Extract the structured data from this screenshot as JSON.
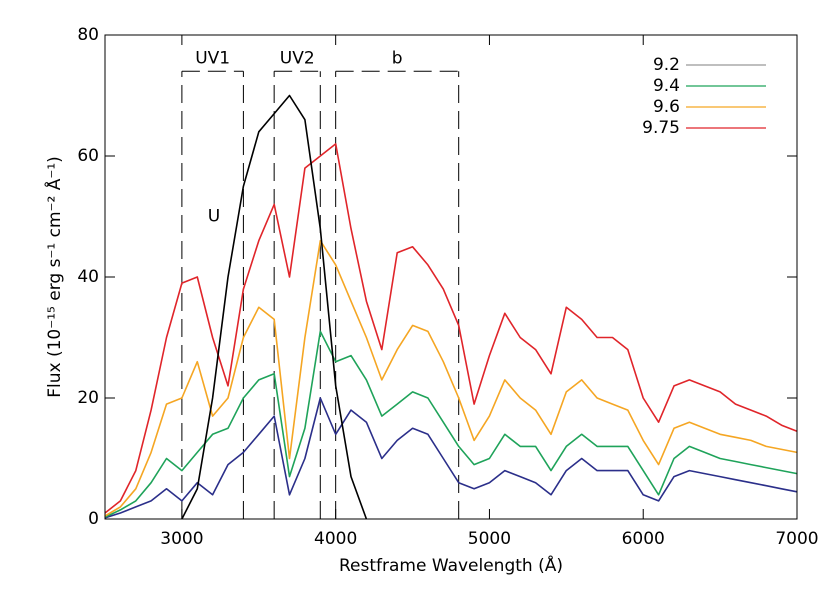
{
  "chart_data": {
    "type": "line",
    "x_label": "Restframe Wavelength (Å)",
    "y_label": "Flux (10⁻¹⁵ erg s⁻¹ cm⁻² Å⁻¹)",
    "xlim": [
      2500,
      7000
    ],
    "ylim": [
      0,
      80
    ],
    "xticks": [
      3000,
      4000,
      5000,
      6000,
      7000
    ],
    "yticks": [
      0,
      20,
      40,
      60,
      80
    ],
    "x": [
      2500,
      2600,
      2700,
      2800,
      2900,
      3000,
      3100,
      3200,
      3300,
      3400,
      3500,
      3600,
      3700,
      3800,
      3900,
      4000,
      4100,
      4200,
      4300,
      4400,
      4500,
      4600,
      4700,
      4800,
      4900,
      5000,
      5100,
      5200,
      5300,
      5400,
      5500,
      5600,
      5700,
      5800,
      5900,
      6000,
      6100,
      6200,
      6300,
      6400,
      6500,
      6600,
      6700,
      6800,
      6900,
      7000
    ],
    "series": [
      {
        "name": "9.2",
        "color": "#2b2f8a",
        "legend_color": "#999999",
        "values": [
          0.2,
          1,
          2,
          3,
          5,
          3,
          6,
          4,
          9,
          11,
          14,
          17,
          4,
          10,
          20,
          14,
          18,
          16,
          10,
          13,
          15,
          14,
          10,
          6,
          5,
          6,
          8,
          7,
          6,
          4,
          8,
          10,
          8,
          8,
          8,
          4,
          3,
          7,
          8,
          7.5,
          7,
          6.5,
          6,
          5.5,
          5,
          4.5
        ]
      },
      {
        "name": "9.4",
        "color": "#1fa35a",
        "values": [
          0.3,
          1.5,
          3,
          6,
          10,
          8,
          11,
          14,
          15,
          20,
          23,
          24,
          7,
          15,
          31,
          26,
          27,
          23,
          17,
          19,
          21,
          20,
          16,
          12,
          9,
          10,
          14,
          12,
          12,
          8,
          12,
          14,
          12,
          12,
          12,
          8,
          4,
          10,
          12,
          11,
          10,
          9.5,
          9,
          8.5,
          8,
          7.5
        ]
      },
      {
        "name": "9.6",
        "color": "#f5a623",
        "values": [
          0.5,
          2,
          5,
          11,
          19,
          20,
          26,
          17,
          20,
          30,
          35,
          33,
          10,
          30,
          46,
          42,
          36,
          30,
          23,
          28,
          32,
          31,
          26,
          20,
          13,
          17,
          23,
          20,
          18,
          14,
          21,
          23,
          20,
          19,
          18,
          13,
          9,
          15,
          16,
          15,
          14,
          13.5,
          13,
          12,
          11.5,
          11
        ]
      },
      {
        "name": "9.75",
        "color": "#e0252a",
        "values": [
          1,
          3,
          8,
          18,
          30,
          39,
          40,
          30,
          22,
          38,
          46,
          52,
          40,
          58,
          60,
          62,
          48,
          36,
          28,
          44,
          45,
          42,
          38,
          32,
          19,
          27,
          34,
          30,
          28,
          24,
          35,
          33,
          30,
          30,
          28,
          20,
          16,
          22,
          23,
          22,
          21,
          19,
          18,
          17,
          15.5,
          14.5
        ]
      }
    ],
    "filter_curve": {
      "name": "U",
      "label_at": [
        3300,
        50
      ],
      "x": [
        3000,
        3100,
        3200,
        3300,
        3400,
        3500,
        3600,
        3700,
        3800,
        3900,
        4000,
        4100,
        4200
      ],
      "values": [
        0,
        5,
        20,
        40,
        55,
        64,
        67,
        70,
        66,
        48,
        22,
        7,
        0
      ]
    },
    "filters": [
      {
        "name": "UV1",
        "lo": 3000,
        "hi": 3400,
        "top": 74
      },
      {
        "name": "UV2",
        "lo": 3600,
        "hi": 3900,
        "top": 74
      },
      {
        "name": "b",
        "lo": 4000,
        "hi": 4800,
        "top": 74
      }
    ]
  }
}
